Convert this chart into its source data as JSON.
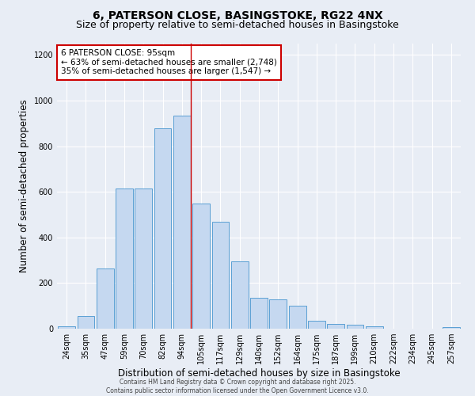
{
  "title": "6, PATERSON CLOSE, BASINGSTOKE, RG22 4NX",
  "subtitle": "Size of property relative to semi-detached houses in Basingstoke",
  "xlabel": "Distribution of semi-detached houses by size in Basingstoke",
  "ylabel": "Number of semi-detached properties",
  "bar_labels": [
    "24sqm",
    "35sqm",
    "47sqm",
    "59sqm",
    "70sqm",
    "82sqm",
    "94sqm",
    "105sqm",
    "117sqm",
    "129sqm",
    "140sqm",
    "152sqm",
    "164sqm",
    "175sqm",
    "187sqm",
    "199sqm",
    "210sqm",
    "222sqm",
    "234sqm",
    "245sqm",
    "257sqm"
  ],
  "bar_values": [
    10,
    55,
    265,
    615,
    615,
    880,
    935,
    550,
    470,
    295,
    135,
    130,
    100,
    35,
    22,
    18,
    12,
    0,
    0,
    0,
    8
  ],
  "bar_color": "#c5d8f0",
  "bar_edge_color": "#5a9fd4",
  "background_color": "#e8edf5",
  "grid_color": "#ffffff",
  "ylim": [
    0,
    1250
  ],
  "red_line_index": 6,
  "red_line_color": "#cc0000",
  "annotation_title": "6 PATERSON CLOSE: 95sqm",
  "annotation_line1": "← 63% of semi-detached houses are smaller (2,748)",
  "annotation_line2": "35% of semi-detached houses are larger (1,547) →",
  "annotation_box_color": "#ffffff",
  "annotation_box_edge": "#cc0000",
  "footer1": "Contains HM Land Registry data © Crown copyright and database right 2025.",
  "footer2": "Contains public sector information licensed under the Open Government Licence v3.0.",
  "title_fontsize": 10,
  "subtitle_fontsize": 9,
  "tick_fontsize": 7,
  "ylabel_fontsize": 8.5,
  "xlabel_fontsize": 8.5
}
